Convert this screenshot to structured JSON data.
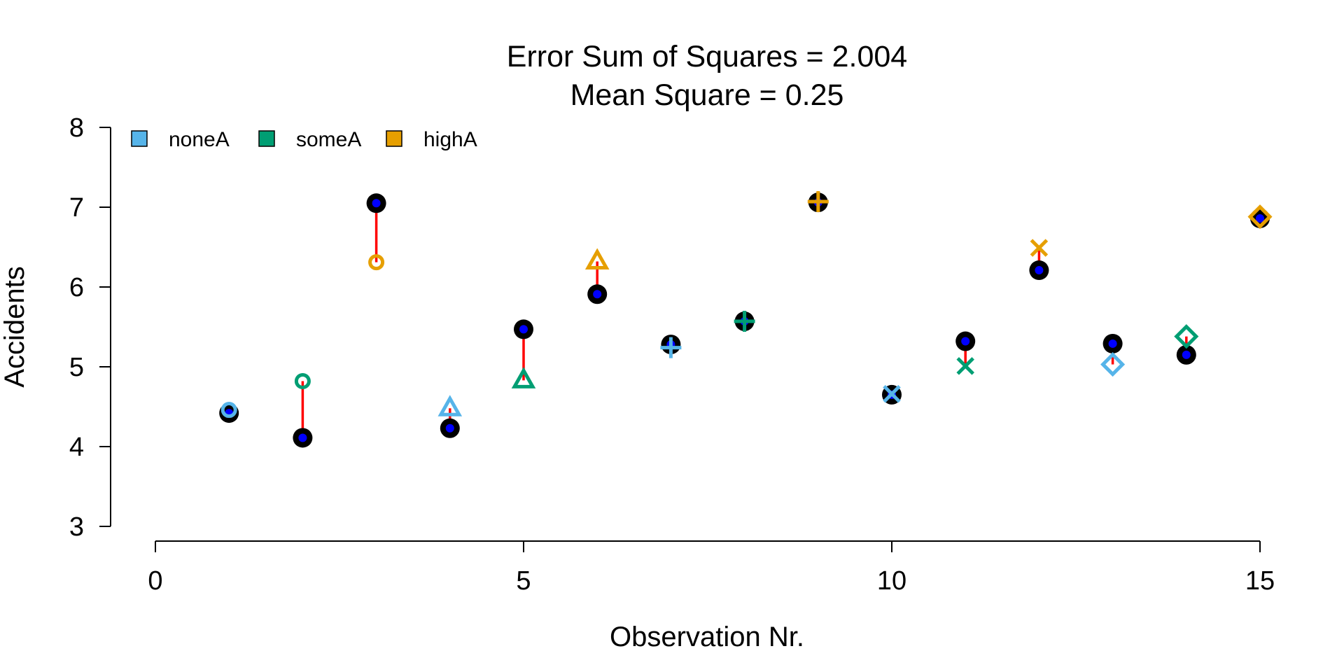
{
  "chart_data": {
    "type": "scatter",
    "title": "Error Sum of Squares = 2.004",
    "subtitle": "Mean Square = 0.25",
    "xlabel": "Observation Nr.",
    "ylabel": "Accidents",
    "xlim": [
      0,
      15
    ],
    "ylim": [
      3,
      8
    ],
    "xticks": [
      "0",
      "5",
      "10",
      "15"
    ],
    "yticks": [
      "3",
      "4",
      "5",
      "6",
      "7",
      "8"
    ],
    "legend_position": "top-left",
    "groups": [
      {
        "name": "noneA",
        "color": "#56B4E9"
      },
      {
        "name": "someA",
        "color": "#009E73"
      },
      {
        "name": "highA",
        "color": "#E69F00"
      }
    ],
    "observed_color": "#000000",
    "fitted_color": "#0000FF",
    "residual_color": "#FF0000",
    "points": [
      {
        "x": 1,
        "observed": 4.42,
        "predicted": 4.46,
        "group": "noneA",
        "marker": "circle"
      },
      {
        "x": 2,
        "observed": 4.11,
        "predicted": 4.82,
        "group": "someA",
        "marker": "circle"
      },
      {
        "x": 3,
        "observed": 7.05,
        "predicted": 6.31,
        "group": "highA",
        "marker": "circle"
      },
      {
        "x": 4,
        "observed": 4.23,
        "predicted": 4.48,
        "group": "noneA",
        "marker": "triangle"
      },
      {
        "x": 5,
        "observed": 5.47,
        "predicted": 4.83,
        "group": "someA",
        "marker": "triangle"
      },
      {
        "x": 6,
        "observed": 5.91,
        "predicted": 6.32,
        "group": "highA",
        "marker": "triangle"
      },
      {
        "x": 7,
        "observed": 5.28,
        "predicted": 5.24,
        "group": "noneA",
        "marker": "plus"
      },
      {
        "x": 8,
        "observed": 5.57,
        "predicted": 5.57,
        "group": "someA",
        "marker": "plus"
      },
      {
        "x": 9,
        "observed": 7.06,
        "predicted": 7.07,
        "group": "highA",
        "marker": "plus"
      },
      {
        "x": 10,
        "observed": 4.65,
        "predicted": 4.66,
        "group": "noneA",
        "marker": "cross"
      },
      {
        "x": 11,
        "observed": 5.32,
        "predicted": 5.01,
        "group": "someA",
        "marker": "cross"
      },
      {
        "x": 12,
        "observed": 6.21,
        "predicted": 6.49,
        "group": "highA",
        "marker": "cross"
      },
      {
        "x": 13,
        "observed": 5.29,
        "predicted": 5.03,
        "group": "noneA",
        "marker": "diamond"
      },
      {
        "x": 14,
        "observed": 5.15,
        "predicted": 5.38,
        "group": "someA",
        "marker": "diamond"
      },
      {
        "x": 15,
        "observed": 6.86,
        "predicted": 6.88,
        "group": "highA",
        "marker": "diamond"
      }
    ]
  }
}
